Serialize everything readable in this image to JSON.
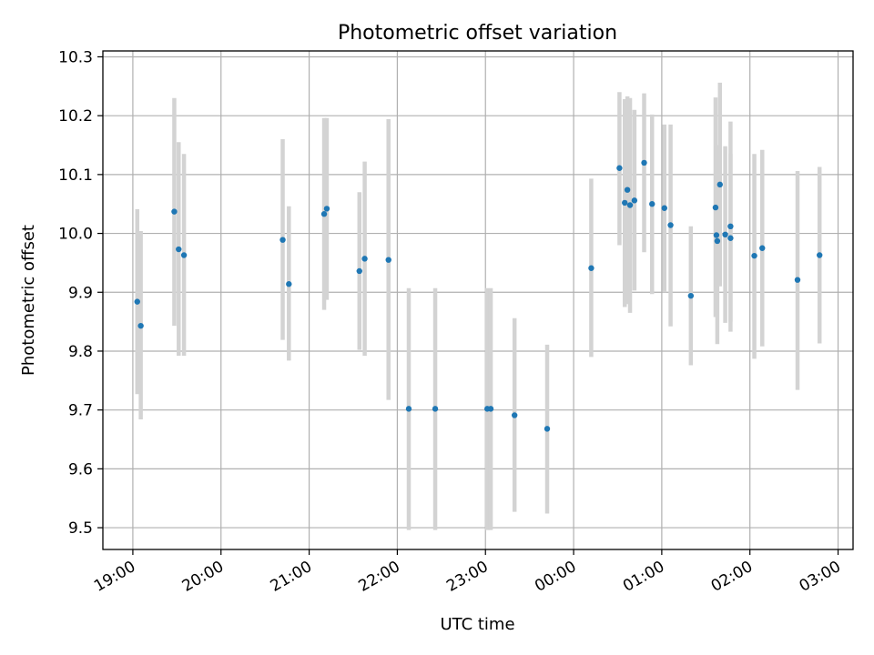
{
  "chart_data": {
    "type": "scatter",
    "title": "Photometric offset variation",
    "xlabel": "UTC time",
    "ylabel": "Photometric offset",
    "grid": true,
    "x_unit": "hours after 19:00 UTC",
    "xlim": [
      -0.34,
      8.17
    ],
    "ylim": [
      9.463,
      10.31
    ],
    "yticks": [
      9.5,
      9.6,
      9.7,
      9.8,
      9.9,
      10.0,
      10.1,
      10.2,
      10.3
    ],
    "ytick_labels": [
      "9.5",
      "9.6",
      "9.7",
      "9.8",
      "9.9",
      "10.0",
      "10.1",
      "10.2",
      "10.3"
    ],
    "xticks": [
      0,
      1,
      2,
      3,
      4,
      5,
      6,
      7,
      8
    ],
    "xtick_labels": [
      "19:00",
      "20:00",
      "21:00",
      "22:00",
      "23:00",
      "00:00",
      "01:00",
      "02:00",
      "03:00"
    ],
    "marker_color": "#1f77b4",
    "errorbar_color": "#d3d3d3",
    "series": [
      {
        "points": [
          {
            "x": 0.05,
            "y": 9.884,
            "err_low": 9.727,
            "err_high": 10.041
          },
          {
            "x": 0.09,
            "y": 9.843,
            "err_low": 9.684,
            "err_high": 10.004
          },
          {
            "x": 0.47,
            "y": 10.037,
            "err_low": 9.843,
            "err_high": 10.23
          },
          {
            "x": 0.52,
            "y": 9.973,
            "err_low": 9.792,
            "err_high": 10.155
          },
          {
            "x": 0.58,
            "y": 9.963,
            "err_low": 9.792,
            "err_high": 10.135
          },
          {
            "x": 1.7,
            "y": 9.989,
            "err_low": 9.819,
            "err_high": 10.16
          },
          {
            "x": 1.77,
            "y": 9.914,
            "err_low": 9.784,
            "err_high": 10.046
          },
          {
            "x": 2.17,
            "y": 10.033,
            "err_low": 9.87,
            "err_high": 10.196
          },
          {
            "x": 2.2,
            "y": 10.042,
            "err_low": 9.887,
            "err_high": 10.196
          },
          {
            "x": 2.57,
            "y": 9.936,
            "err_low": 9.802,
            "err_high": 10.07
          },
          {
            "x": 2.63,
            "y": 9.957,
            "err_low": 9.792,
            "err_high": 10.122
          },
          {
            "x": 2.9,
            "y": 9.955,
            "err_low": 9.717,
            "err_high": 10.194
          },
          {
            "x": 3.13,
            "y": 9.702,
            "err_low": 9.496,
            "err_high": 9.907
          },
          {
            "x": 3.43,
            "y": 9.702,
            "err_low": 9.496,
            "err_high": 9.907
          },
          {
            "x": 4.02,
            "y": 9.702,
            "err_low": 9.496,
            "err_high": 9.907
          },
          {
            "x": 4.06,
            "y": 9.702,
            "err_low": 9.496,
            "err_high": 9.907
          },
          {
            "x": 4.33,
            "y": 9.691,
            "err_low": 9.527,
            "err_high": 9.856
          },
          {
            "x": 4.7,
            "y": 9.668,
            "err_low": 9.524,
            "err_high": 9.811
          },
          {
            "x": 5.2,
            "y": 9.941,
            "err_low": 9.79,
            "err_high": 10.093
          },
          {
            "x": 5.52,
            "y": 10.111,
            "err_low": 9.98,
            "err_high": 10.24
          },
          {
            "x": 5.58,
            "y": 10.052,
            "err_low": 9.875,
            "err_high": 10.228
          },
          {
            "x": 5.61,
            "y": 10.074,
            "err_low": 9.88,
            "err_high": 10.233
          },
          {
            "x": 5.64,
            "y": 10.048,
            "err_low": 9.865,
            "err_high": 10.23
          },
          {
            "x": 5.69,
            "y": 10.056,
            "err_low": 9.903,
            "err_high": 10.21
          },
          {
            "x": 5.8,
            "y": 10.12,
            "err_low": 9.968,
            "err_high": 10.238
          },
          {
            "x": 5.89,
            "y": 10.05,
            "err_low": 9.897,
            "err_high": 10.202
          },
          {
            "x": 6.03,
            "y": 10.043,
            "err_low": 9.9,
            "err_high": 10.185
          },
          {
            "x": 6.1,
            "y": 10.014,
            "err_low": 9.842,
            "err_high": 10.185
          },
          {
            "x": 6.33,
            "y": 9.894,
            "err_low": 9.776,
            "err_high": 10.012
          },
          {
            "x": 6.61,
            "y": 10.044,
            "err_low": 9.858,
            "err_high": 10.231
          },
          {
            "x": 6.62,
            "y": 9.997,
            "err_low": 9.91,
            "err_high": 10.15
          },
          {
            "x": 6.63,
            "y": 9.987,
            "err_low": 9.812,
            "err_high": 10.0
          },
          {
            "x": 6.66,
            "y": 10.083,
            "err_low": 9.91,
            "err_high": 10.256
          },
          {
            "x": 6.72,
            "y": 9.998,
            "err_low": 9.848,
            "err_high": 10.148
          },
          {
            "x": 6.78,
            "y": 10.012,
            "err_low": 9.833,
            "err_high": 10.19
          },
          {
            "x": 6.78,
            "y": 9.992,
            "err_low": 9.85,
            "err_high": 10.135
          },
          {
            "x": 7.05,
            "y": 9.962,
            "err_low": 9.787,
            "err_high": 10.135
          },
          {
            "x": 7.14,
            "y": 9.975,
            "err_low": 9.808,
            "err_high": 10.142
          },
          {
            "x": 7.54,
            "y": 9.921,
            "err_low": 9.734,
            "err_high": 10.106
          },
          {
            "x": 7.79,
            "y": 9.963,
            "err_low": 9.813,
            "err_high": 10.113
          }
        ]
      }
    ]
  }
}
